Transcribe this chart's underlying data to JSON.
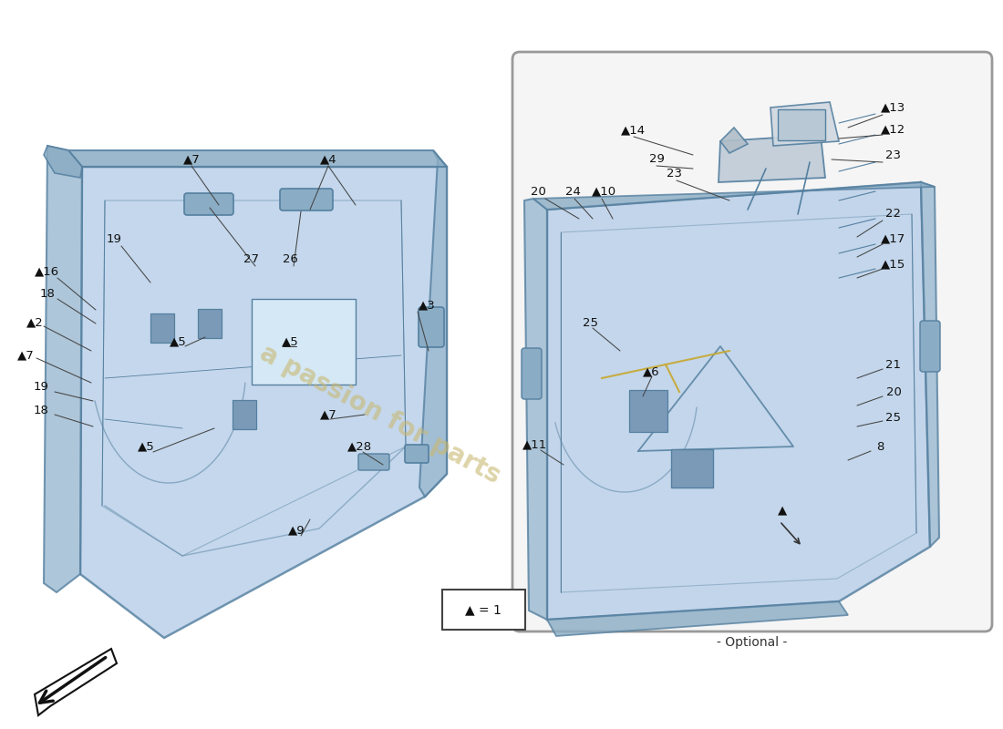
{
  "bg_color": "#ffffff",
  "box_fill": "#b8cfe8",
  "box_edge": "#5580a0",
  "box_inner": "#ccdff0",
  "box_side": "#9ab8d0",
  "box_bottom_face": "#8aacc4",
  "optional_bg": "#f5f5f5",
  "optional_edge": "#999999",
  "watermark_color": "#c8b870",
  "watermark_text": "a passion for parts",
  "legend_text": "▲ = 1",
  "optional_label": "- Optional -",
  "left_labels": [
    [
      "▲7",
      210,
      175
    ],
    [
      "▲4",
      360,
      175
    ],
    [
      "19",
      125,
      263
    ],
    [
      "▲16",
      52,
      298
    ],
    [
      "18",
      52,
      322
    ],
    [
      "▲2",
      38,
      354
    ],
    [
      "▲7",
      28,
      390
    ],
    [
      "19",
      45,
      425
    ],
    [
      "18",
      45,
      450
    ],
    [
      "27",
      275,
      285
    ],
    [
      "26",
      318,
      285
    ],
    [
      "▲3",
      468,
      335
    ],
    [
      "▲5",
      195,
      375
    ],
    [
      "▲5",
      318,
      375
    ],
    [
      "▲5",
      160,
      490
    ],
    [
      "▲7",
      360,
      455
    ],
    [
      "▲28",
      395,
      490
    ],
    [
      "▲9",
      325,
      582
    ]
  ],
  "right_labels": [
    [
      "▲14",
      695,
      143
    ],
    [
      "29",
      720,
      175
    ],
    [
      "20",
      590,
      210
    ],
    [
      "24",
      628,
      210
    ],
    [
      "▲10",
      663,
      210
    ],
    [
      "23",
      740,
      190
    ],
    [
      "▲13",
      980,
      118
    ],
    [
      "▲12",
      980,
      142
    ],
    [
      "23",
      980,
      170
    ],
    [
      "22",
      980,
      235
    ],
    [
      "▲17",
      980,
      262
    ],
    [
      "▲15",
      980,
      290
    ],
    [
      "25",
      648,
      355
    ],
    [
      "▲6",
      714,
      408
    ],
    [
      "21",
      980,
      400
    ],
    [
      "20",
      980,
      430
    ],
    [
      "25",
      980,
      458
    ],
    [
      "8",
      965,
      490
    ],
    [
      "▲11",
      587,
      488
    ],
    [
      "▲",
      858,
      560
    ]
  ]
}
